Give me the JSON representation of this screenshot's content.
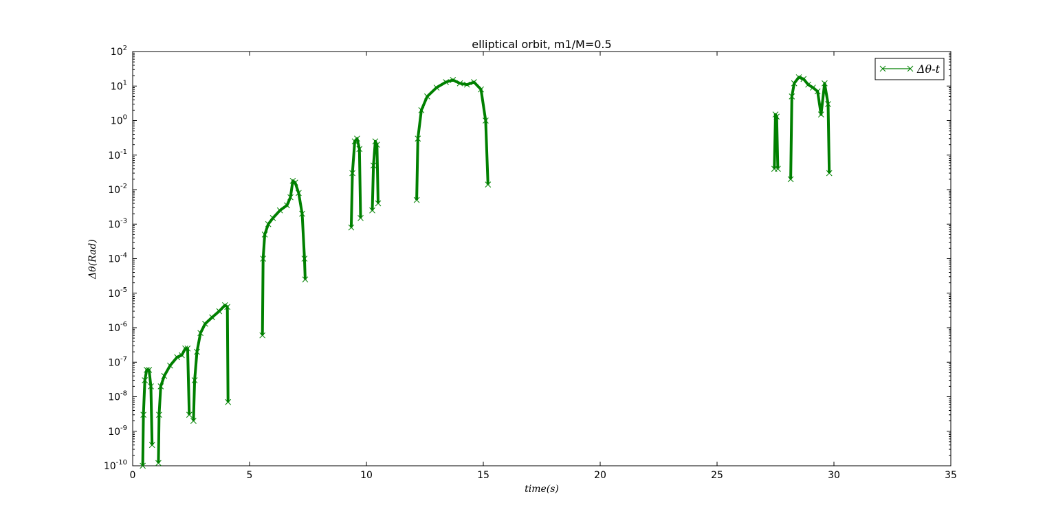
{
  "chart_data": {
    "type": "line",
    "title": "elliptical orbit, m1/M=0.5",
    "xlabel": "time(s)",
    "ylabel": "Δθ(Rad)",
    "xlim": [
      0,
      35
    ],
    "ylim_exponents": [
      -10,
      2
    ],
    "yscale": "log",
    "x_ticks": [
      "0",
      "5",
      "10",
      "15",
      "20",
      "25",
      "30",
      "35"
    ],
    "y_ticks": [
      {
        "base": "10",
        "exp": "-10"
      },
      {
        "base": "10",
        "exp": "-9"
      },
      {
        "base": "10",
        "exp": "-8"
      },
      {
        "base": "10",
        "exp": "-7"
      },
      {
        "base": "10",
        "exp": "-6"
      },
      {
        "base": "10",
        "exp": "-5"
      },
      {
        "base": "10",
        "exp": "-4"
      },
      {
        "base": "10",
        "exp": "-3"
      },
      {
        "base": "10",
        "exp": "-2"
      },
      {
        "base": "10",
        "exp": "-1"
      },
      {
        "base": "10",
        "exp": "0"
      },
      {
        "base": "10",
        "exp": "1"
      },
      {
        "base": "10",
        "exp": "2"
      }
    ],
    "grid": false,
    "legend": {
      "placement": "top-right",
      "entries": [
        "Δθ-t"
      ]
    },
    "series": [
      {
        "name": "Δθ-t",
        "color": "#008000",
        "marker": "x",
        "segments": [
          {
            "x": [
              0.43,
              0.46,
              0.52,
              0.6,
              0.7,
              0.78,
              0.83
            ],
            "y": [
              1e-10,
              3e-09,
              3e-08,
              6e-08,
              6e-08,
              2e-08,
              4e-10
            ]
          },
          {
            "x": [
              1.1,
              1.13,
              1.2,
              1.35,
              1.6,
              1.9,
              2.1,
              2.25,
              2.35,
              2.42
            ],
            "y": [
              1.2e-10,
              3e-09,
              2e-08,
              4e-08,
              8e-08,
              1.4e-07,
              1.6e-07,
              2.5e-07,
              2.5e-07,
              3e-09
            ]
          },
          {
            "x": [
              2.6,
              2.65,
              2.75,
              2.9,
              3.1,
              3.4,
              3.7,
              3.95,
              4.05,
              4.08
            ],
            "y": [
              2e-09,
              3e-08,
              2e-07,
              7e-07,
              1.3e-06,
              2e-06,
              3e-06,
              4.5e-06,
              4e-06,
              7e-09
            ]
          },
          {
            "x": [
              5.55,
              5.58,
              5.65,
              5.8,
              6.0,
              6.3,
              6.6,
              6.75,
              6.85,
              6.95,
              7.1,
              7.25,
              7.35,
              7.38
            ],
            "y": [
              6e-07,
              0.0001,
              0.0005,
              0.001,
              0.0015,
              0.0025,
              0.0035,
              0.006,
              0.018,
              0.016,
              0.008,
              0.002,
              0.0001,
              2.5e-05
            ]
          },
          {
            "x": [
              9.35,
              9.4,
              9.5,
              9.6,
              9.7,
              9.75
            ],
            "y": [
              0.0008,
              0.03,
              0.25,
              0.3,
              0.15,
              0.0015
            ]
          },
          {
            "x": [
              10.25,
              10.3,
              10.38,
              10.45,
              10.5
            ],
            "y": [
              0.0025,
              0.05,
              0.25,
              0.2,
              0.004
            ]
          },
          {
            "x": [
              12.15,
              12.2,
              12.35,
              12.6,
              13.0,
              13.4,
              13.7,
              14.0,
              14.3,
              14.6,
              14.9,
              15.1,
              15.2
            ],
            "y": [
              0.005,
              0.3,
              2,
              5,
              9,
              13,
              15,
              12,
              11,
              13,
              8,
              1,
              0.014
            ]
          },
          {
            "x": [
              27.45,
              27.5,
              27.55,
              27.6
            ],
            "y": [
              0.04,
              1.5,
              1.3,
              0.04
            ]
          },
          {
            "x": [
              28.15,
              28.2,
              28.3,
              28.5,
              28.7,
              28.9,
              29.1,
              29.3,
              29.45,
              29.6,
              29.75,
              29.8
            ],
            "y": [
              0.02,
              5,
              12,
              18,
              16,
              11,
              9,
              7,
              1.5,
              12,
              3,
              0.03
            ]
          }
        ]
      }
    ]
  }
}
